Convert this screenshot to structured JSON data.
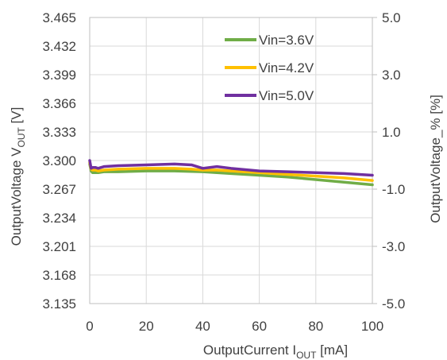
{
  "chart_data": {
    "type": "line",
    "xlabel": {
      "main": "OutputCurrent  I",
      "sub": "OUT",
      "unit": " [mA]"
    },
    "ylabel_left": {
      "main": "OutputVoltage  V",
      "sub": "OUT",
      "unit": " [V]"
    },
    "ylabel_right": "OutputVoltage_% [%]",
    "xlim": [
      0,
      100
    ],
    "ylim_left": [
      3.135,
      3.465
    ],
    "ylim_right": [
      -5.0,
      5.0
    ],
    "x_ticks": [
      "0",
      "20",
      "40",
      "60",
      "80",
      "100"
    ],
    "y_ticks_left": [
      "3.465",
      "3.432",
      "3.399",
      "3.366",
      "3.333",
      "3.300",
      "3.267",
      "3.234",
      "3.201",
      "3.168",
      "3.135"
    ],
    "y_ticks_right": [
      "5.0",
      "3.0",
      "1.0",
      "-1.0",
      "-3.0",
      "-5.0"
    ],
    "grid": true,
    "legend_position": "top-right",
    "series": [
      {
        "name": "Vin=3.6V",
        "color": "#70ad47",
        "x": [
          0,
          0.5,
          1,
          2,
          3,
          5,
          10,
          20,
          30,
          40,
          50,
          60,
          70,
          80,
          90,
          100
        ],
        "y": [
          3.296,
          3.288,
          3.286,
          3.286,
          3.286,
          3.287,
          3.287,
          3.288,
          3.288,
          3.287,
          3.285,
          3.283,
          3.281,
          3.278,
          3.275,
          3.272
        ]
      },
      {
        "name": "Vin=4.2V",
        "color": "#ffc000",
        "x": [
          0,
          0.5,
          1,
          2,
          3,
          5,
          10,
          20,
          30,
          36,
          40,
          45,
          50,
          60,
          70,
          80,
          90,
          100
        ],
        "y": [
          3.298,
          3.29,
          3.289,
          3.289,
          3.288,
          3.289,
          3.29,
          3.291,
          3.291,
          3.29,
          3.289,
          3.289,
          3.288,
          3.286,
          3.284,
          3.282,
          3.28,
          3.277
        ]
      },
      {
        "name": "Vin=5.0V",
        "color": "#7030a0",
        "x": [
          0,
          0.5,
          1,
          2,
          3,
          5,
          10,
          20,
          30,
          36,
          40,
          45,
          50,
          60,
          70,
          80,
          90,
          100
        ],
        "y": [
          3.3,
          3.291,
          3.292,
          3.292,
          3.291,
          3.293,
          3.294,
          3.295,
          3.296,
          3.295,
          3.291,
          3.293,
          3.291,
          3.288,
          3.287,
          3.286,
          3.285,
          3.283
        ]
      }
    ]
  }
}
